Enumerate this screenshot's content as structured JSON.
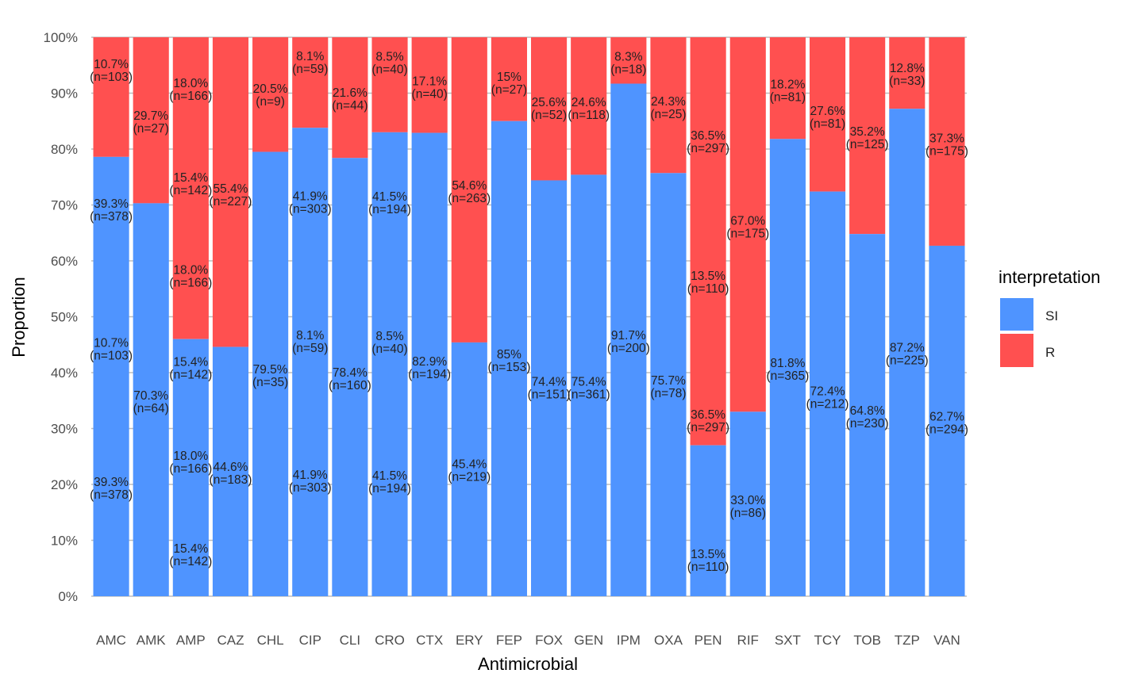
{
  "chart_data": {
    "type": "bar",
    "stacked": true,
    "xlabel": "Antimicrobial",
    "ylabel": "Proportion",
    "ylim": [
      0,
      1
    ],
    "yticks": [
      "0%",
      "10%",
      "20%",
      "30%",
      "40%",
      "50%",
      "60%",
      "70%",
      "80%",
      "90%",
      "100%"
    ],
    "grid": true,
    "legend": {
      "title": "interpretation",
      "position": "right",
      "entries": [
        "SI",
        "R"
      ]
    },
    "colors": {
      "SI": "#4F94FF",
      "R": "#FF5050"
    },
    "categories": [
      "AMC",
      "AMK",
      "AMP",
      "CAZ",
      "CHL",
      "CIP",
      "CLI",
      "CRO",
      "CTX",
      "ERY",
      "FEP",
      "FOX",
      "GEN",
      "IPM",
      "OXA",
      "PEN",
      "RIF",
      "SXT",
      "TCY",
      "TOB",
      "TZP",
      "VAN"
    ],
    "series": [
      {
        "name": "SI",
        "values": [
          0.786,
          0.703,
          0.46,
          0.446,
          0.795,
          0.838,
          0.784,
          0.83,
          0.829,
          0.454,
          0.85,
          0.744,
          0.754,
          0.917,
          0.757,
          0.27,
          0.33,
          0.818,
          0.724,
          0.648,
          0.872,
          0.627
        ]
      },
      {
        "name": "R",
        "values": [
          0.214,
          0.297,
          0.54,
          0.554,
          0.205,
          0.162,
          0.216,
          0.17,
          0.171,
          0.546,
          0.15,
          0.256,
          0.246,
          0.083,
          0.243,
          0.73,
          0.67,
          0.182,
          0.276,
          0.352,
          0.128,
          0.373
        ]
      }
    ],
    "labels": [
      [
        {
          "y": 0.942,
          "t1": "10.7%",
          "t2": "(n=103)"
        },
        {
          "y": 0.692,
          "t1": "39.3%",
          "t2": "(n=378)"
        },
        {
          "y": 0.443,
          "t1": "10.7%",
          "t2": "(n=103)"
        },
        {
          "y": 0.194,
          "t1": "39.3%",
          "t2": "(n=378)"
        }
      ],
      [
        {
          "y": 0.85,
          "t1": "29.7%",
          "t2": "(n=27)"
        },
        {
          "y": 0.349,
          "t1": "70.3%",
          "t2": "(n=64)"
        }
      ],
      [
        {
          "y": 0.908,
          "t1": "18.0%",
          "t2": "(n=166)"
        },
        {
          "y": 0.739,
          "t1": "15.4%",
          "t2": "(n=142)"
        },
        {
          "y": 0.574,
          "t1": "18.0%",
          "t2": "(n=166)"
        },
        {
          "y": 0.409,
          "t1": "15.4%",
          "t2": "(n=142)"
        },
        {
          "y": 0.241,
          "t1": "18.0%",
          "t2": "(n=166)"
        },
        {
          "y": 0.075,
          "t1": "15.4%",
          "t2": "(n=142)"
        }
      ],
      [
        {
          "y": 0.719,
          "t1": "55.4%",
          "t2": "(n=227)"
        },
        {
          "y": 0.221,
          "t1": "44.6%",
          "t2": "(n=183)"
        }
      ],
      [
        {
          "y": 0.898,
          "t1": "20.5%",
          "t2": "(n=9)"
        },
        {
          "y": 0.396,
          "t1": "79.5%",
          "t2": "(n=35)"
        }
      ],
      [
        {
          "y": 0.956,
          "t1": "8.1%",
          "t2": "(n=59)"
        },
        {
          "y": 0.706,
          "t1": "41.9%",
          "t2": "(n=303)"
        },
        {
          "y": 0.457,
          "t1": "8.1%",
          "t2": "(n=59)"
        },
        {
          "y": 0.207,
          "t1": "41.9%",
          "t2": "(n=303)"
        }
      ],
      [
        {
          "y": 0.891,
          "t1": "21.6%",
          "t2": "(n=44)"
        },
        {
          "y": 0.39,
          "t1": "78.4%",
          "t2": "(n=160)"
        }
      ],
      [
        {
          "y": 0.955,
          "t1": "8.5%",
          "t2": "(n=40)"
        },
        {
          "y": 0.705,
          "t1": "41.5%",
          "t2": "(n=194)"
        },
        {
          "y": 0.455,
          "t1": "8.5%",
          "t2": "(n=40)"
        },
        {
          "y": 0.206,
          "t1": "41.5%",
          "t2": "(n=194)"
        }
      ],
      [
        {
          "y": 0.911,
          "t1": "17.1%",
          "t2": "(n=40)"
        },
        {
          "y": 0.41,
          "t1": "82.9%",
          "t2": "(n=194)"
        }
      ],
      [
        {
          "y": 0.725,
          "t1": "54.6%",
          "t2": "(n=263)"
        },
        {
          "y": 0.226,
          "t1": "45.4%",
          "t2": "(n=219)"
        }
      ],
      [
        {
          "y": 0.919,
          "t1": "15%",
          "t2": "(n=27)"
        },
        {
          "y": 0.423,
          "t1": "85%",
          "t2": "(n=153)"
        }
      ],
      [
        {
          "y": 0.874,
          "t1": "25.6%",
          "t2": "(n=52)"
        },
        {
          "y": 0.374,
          "t1": "74.4%",
          "t2": "(n=151)"
        }
      ],
      [
        {
          "y": 0.874,
          "t1": "24.6%",
          "t2": "(n=118)"
        },
        {
          "y": 0.374,
          "t1": "75.4%",
          "t2": "(n=361)"
        }
      ],
      [
        {
          "y": 0.955,
          "t1": "8.3%",
          "t2": "(n=18)"
        },
        {
          "y": 0.457,
          "t1": "91.7%",
          "t2": "(n=200)"
        }
      ],
      [
        {
          "y": 0.875,
          "t1": "24.3%",
          "t2": "(n=25)"
        },
        {
          "y": 0.376,
          "t1": "75.7%",
          "t2": "(n=78)"
        }
      ],
      [
        {
          "y": 0.814,
          "t1": "36.5%",
          "t2": "(n=297)"
        },
        {
          "y": 0.563,
          "t1": "13.5%",
          "t2": "(n=110)"
        },
        {
          "y": 0.315,
          "t1": "36.5%",
          "t2": "(n=297)"
        },
        {
          "y": 0.065,
          "t1": "13.5%",
          "t2": "(n=110)"
        }
      ],
      [
        {
          "y": 0.662,
          "t1": "67.0%",
          "t2": "(n=175)"
        },
        {
          "y": 0.162,
          "t1": "33.0%",
          "t2": "(n=86)"
        }
      ],
      [
        {
          "y": 0.906,
          "t1": "18.2%",
          "t2": "(n=81)"
        },
        {
          "y": 0.407,
          "t1": "81.8%",
          "t2": "(n=365)"
        }
      ],
      [
        {
          "y": 0.858,
          "t1": "27.6%",
          "t2": "(n=81)"
        },
        {
          "y": 0.357,
          "t1": "72.4%",
          "t2": "(n=212)"
        }
      ],
      [
        {
          "y": 0.821,
          "t1": "35.2%",
          "t2": "(n=125)"
        },
        {
          "y": 0.322,
          "t1": "64.8%",
          "t2": "(n=230)"
        }
      ],
      [
        {
          "y": 0.935,
          "t1": "12.8%",
          "t2": "(n=33)"
        },
        {
          "y": 0.435,
          "t1": "87.2%",
          "t2": "(n=225)"
        }
      ],
      [
        {
          "y": 0.809,
          "t1": "37.3%",
          "t2": "(n=175)"
        },
        {
          "y": 0.311,
          "t1": "62.7%",
          "t2": "(n=294)"
        }
      ]
    ]
  }
}
